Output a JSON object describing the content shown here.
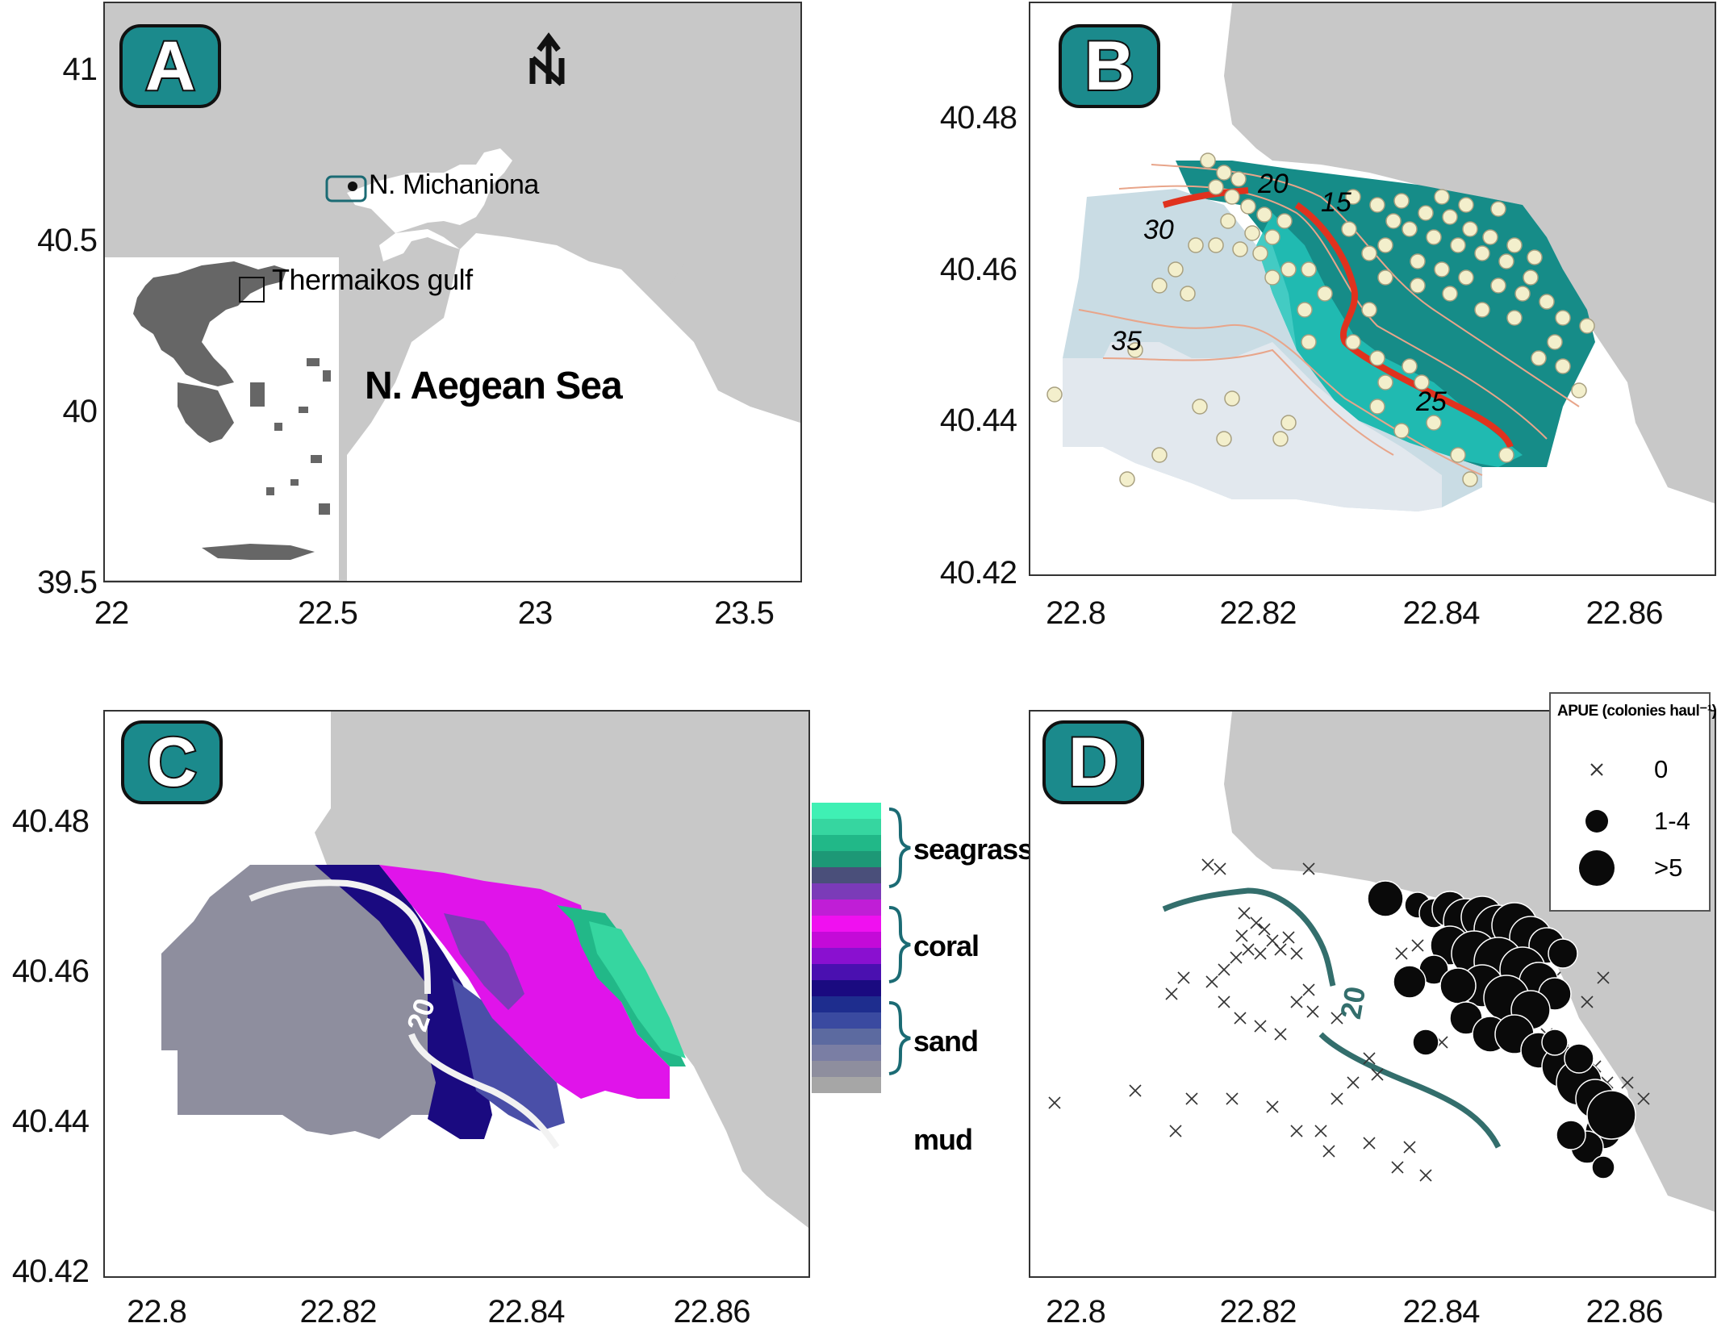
{
  "panels": {
    "A": {
      "label": "A",
      "y_ticks": [
        "41",
        "40.5",
        "40",
        "39.5"
      ],
      "x_ticks": [
        "22",
        "22.5",
        "23",
        "23.5"
      ],
      "place_label": "N. Michaniona",
      "gulf_label": "Thermaikos gulf",
      "sea_label": "N. Aegean Sea",
      "north_arrow": "N",
      "north_icon": "north-arrow-icon"
    },
    "B": {
      "label": "B",
      "y_ticks": [
        "40.48",
        "40.46",
        "40.44",
        "40.42"
      ],
      "x_ticks": [
        "22.8",
        "22.82",
        "22.84",
        "22.86"
      ],
      "contour_labels": [
        "20",
        "15",
        "30",
        "35",
        "25"
      ]
    },
    "C": {
      "label": "C",
      "y_ticks": [
        "40.48",
        "40.46",
        "40.44",
        "40.42"
      ],
      "x_ticks": [
        "22.8",
        "22.82",
        "22.84",
        "22.86"
      ],
      "contour_label": "20",
      "legend": [
        "seagrass",
        "coral",
        "sand",
        "mud"
      ],
      "legend_colors": [
        "#3ff0b4",
        "#36d6a0",
        "#21b888",
        "#1d9876",
        "#4a4f7a",
        "#7b3bb8",
        "#c01ed6",
        "#f010f0",
        "#c40ad8",
        "#8a10d0",
        "#4a10b0",
        "#1a0a80",
        "#1e2d8e",
        "#3a4aa0",
        "#5c6aa0",
        "#7a7ea4",
        "#8e8e9e",
        "#a6a6a6"
      ]
    },
    "D": {
      "label": "D",
      "y_ticks": [
        "40.48",
        "40.46",
        "40.44",
        "40.42"
      ],
      "x_ticks": [
        "22.8",
        "22.82",
        "22.84",
        "22.86"
      ],
      "contour_label": "20",
      "legend_title": "APUE (colonies haul⁻¹)",
      "legend_items": [
        "0",
        "1-4",
        ">5"
      ]
    }
  },
  "colors": {
    "land": "#c8c8c8",
    "badge": "#1b8a8c",
    "teal_dark": "#168c88",
    "teal_light": "#22c2b8",
    "pale_blue": "#c9dce4",
    "red_contour": "#e0321e",
    "contour_line": "#e8a58a",
    "dot": "#f3efcc",
    "contour_d": "#336e6c"
  }
}
